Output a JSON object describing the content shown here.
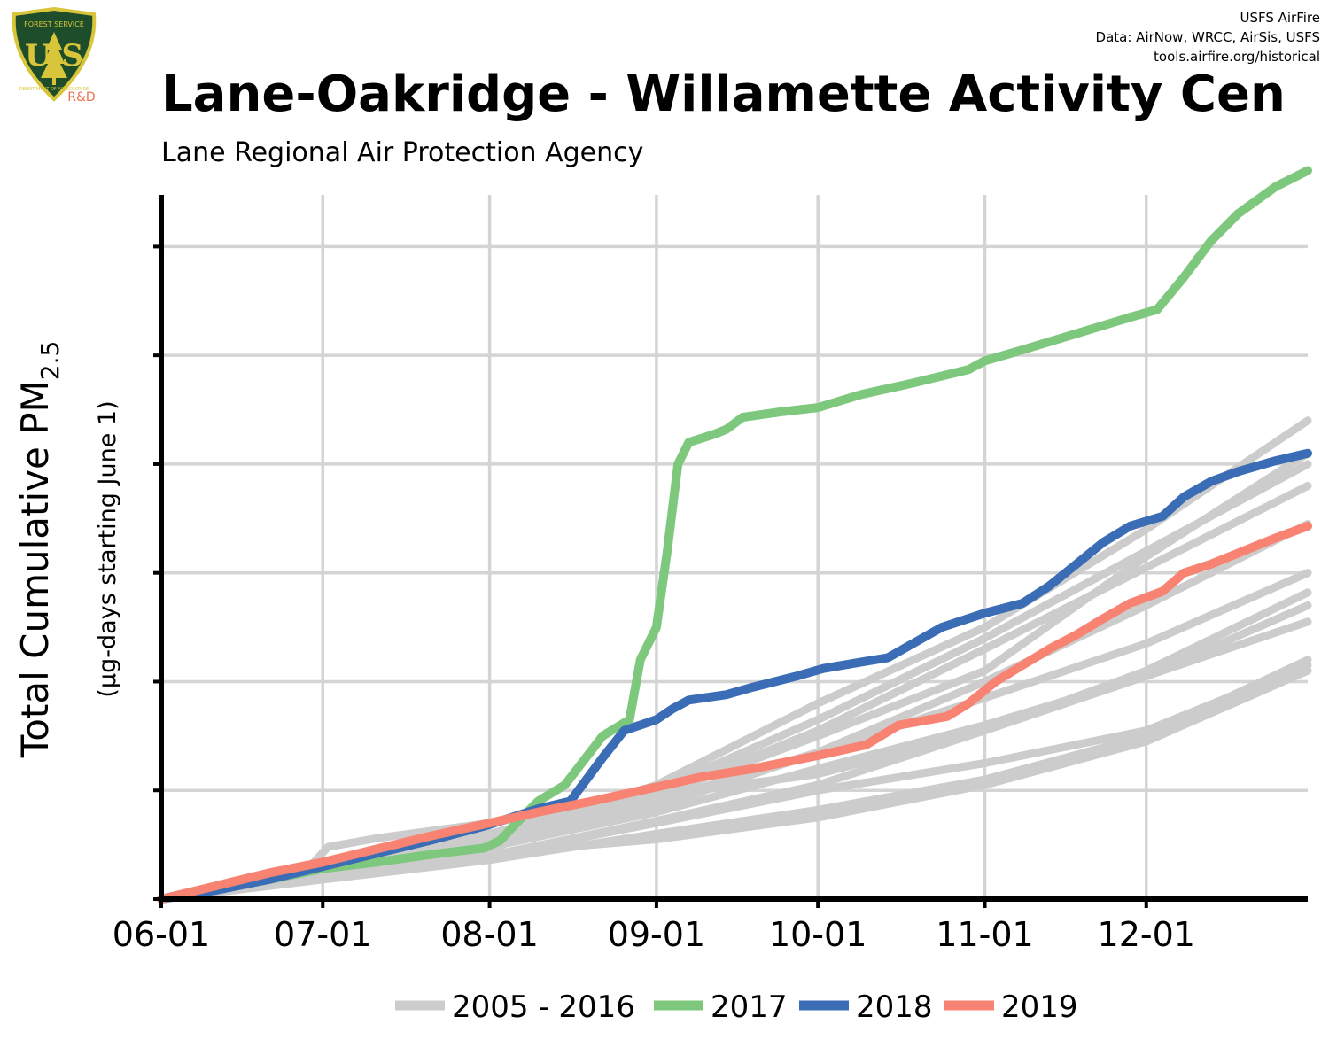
{
  "header": {
    "title": "Lane-Oakridge - Willamette Activity Cen",
    "subtitle": "Lane Regional Air Protection Agency",
    "credits": [
      "USFS AirFire",
      "Data: AirNow, WRCC, AirSis, USFS",
      "tools.airfire.org/historical"
    ]
  },
  "logo": {
    "top_text": "FOREST SERVICE",
    "letters": "U S",
    "bottom_text": "DEPARTMENT OF AGRICULTURE",
    "badge": "R&D",
    "colors": {
      "shield": "#1e4d2b",
      "border": "#d8c53a",
      "badge_text": "#e8734a"
    }
  },
  "chart_data": {
    "type": "line",
    "ylabel_main": "Total Cumulative PM",
    "ylabel_sub_script": "2.5",
    "ylabel_units": "(µg-days starting June 1)",
    "x_ticks": [
      "06-01",
      "07-01",
      "08-01",
      "09-01",
      "10-01",
      "11-01",
      "12-01"
    ],
    "x_tick_days": [
      0,
      30,
      61,
      92,
      122,
      153,
      183
    ],
    "xlim_days": [
      0,
      213
    ],
    "y_ticks": [
      0,
      1,
      2,
      3,
      4,
      5,
      6
    ],
    "ylim": [
      0,
      6.72
    ],
    "y_tick_labels_shown": false,
    "grid": true,
    "legend_position": "bottom",
    "colors": {
      "history": "#cccccc",
      "2017": "#7ec87e",
      "2018": "#3a6db5",
      "2019": "#f88372"
    },
    "history_legend": "2005 - 2016",
    "series": [
      {
        "name": "2017",
        "color": "#7ec87e",
        "points": [
          [
            0,
            0
          ],
          [
            20,
            0.18
          ],
          [
            30,
            0.28
          ],
          [
            40,
            0.34
          ],
          [
            50,
            0.41
          ],
          [
            60,
            0.47
          ],
          [
            63,
            0.54
          ],
          [
            66,
            0.7
          ],
          [
            70,
            0.9
          ],
          [
            75,
            1.05
          ],
          [
            82,
            1.5
          ],
          [
            87,
            1.65
          ],
          [
            89,
            2.2
          ],
          [
            92,
            2.5
          ],
          [
            94,
            3.2
          ],
          [
            96,
            4.0
          ],
          [
            98,
            4.2
          ],
          [
            103,
            4.28
          ],
          [
            105,
            4.32
          ],
          [
            108,
            4.43
          ],
          [
            115,
            4.48
          ],
          [
            122,
            4.52
          ],
          [
            130,
            4.64
          ],
          [
            140,
            4.75
          ],
          [
            150,
            4.87
          ],
          [
            153,
            4.95
          ],
          [
            160,
            5.05
          ],
          [
            170,
            5.2
          ],
          [
            180,
            5.35
          ],
          [
            185,
            5.42
          ],
          [
            190,
            5.72
          ],
          [
            195,
            6.05
          ],
          [
            200,
            6.3
          ],
          [
            207,
            6.55
          ],
          [
            213,
            6.7
          ]
        ]
      },
      {
        "name": "2018",
        "color": "#3a6db5",
        "points": [
          [
            0,
            0
          ],
          [
            10,
            0.08
          ],
          [
            20,
            0.18
          ],
          [
            30,
            0.3
          ],
          [
            40,
            0.42
          ],
          [
            50,
            0.54
          ],
          [
            60,
            0.67
          ],
          [
            70,
            0.83
          ],
          [
            76,
            0.9
          ],
          [
            79,
            1.1
          ],
          [
            82,
            1.3
          ],
          [
            86,
            1.55
          ],
          [
            92,
            1.65
          ],
          [
            95,
            1.75
          ],
          [
            98,
            1.83
          ],
          [
            105,
            1.88
          ],
          [
            110,
            1.95
          ],
          [
            118,
            2.05
          ],
          [
            123,
            2.12
          ],
          [
            130,
            2.18
          ],
          [
            135,
            2.22
          ],
          [
            145,
            2.5
          ],
          [
            153,
            2.63
          ],
          [
            160,
            2.72
          ],
          [
            165,
            2.88
          ],
          [
            170,
            3.08
          ],
          [
            175,
            3.28
          ],
          [
            180,
            3.43
          ],
          [
            186,
            3.52
          ],
          [
            190,
            3.7
          ],
          [
            195,
            3.84
          ],
          [
            200,
            3.93
          ],
          [
            207,
            4.03
          ],
          [
            213,
            4.1
          ]
        ]
      },
      {
        "name": "2019",
        "color": "#f88372",
        "points": [
          [
            0,
            0
          ],
          [
            10,
            0.12
          ],
          [
            20,
            0.24
          ],
          [
            30,
            0.34
          ],
          [
            40,
            0.46
          ],
          [
            50,
            0.58
          ],
          [
            61,
            0.7
          ],
          [
            70,
            0.8
          ],
          [
            80,
            0.9
          ],
          [
            92,
            1.03
          ],
          [
            100,
            1.12
          ],
          [
            110,
            1.2
          ],
          [
            122,
            1.32
          ],
          [
            131,
            1.42
          ],
          [
            137,
            1.6
          ],
          [
            146,
            1.68
          ],
          [
            150,
            1.8
          ],
          [
            155,
            2.0
          ],
          [
            160,
            2.15
          ],
          [
            165,
            2.3
          ],
          [
            170,
            2.43
          ],
          [
            175,
            2.58
          ],
          [
            180,
            2.72
          ],
          [
            186,
            2.83
          ],
          [
            190,
            3.0
          ],
          [
            195,
            3.08
          ],
          [
            200,
            3.18
          ],
          [
            207,
            3.32
          ],
          [
            213,
            3.43
          ]
        ]
      },
      {
        "name": "",
        "color": "#cccccc",
        "points": [
          [
            0,
            0
          ],
          [
            20,
            0.2
          ],
          [
            28,
            0.32
          ],
          [
            31,
            0.48
          ],
          [
            40,
            0.56
          ],
          [
            61,
            0.7
          ],
          [
            92,
            0.95
          ],
          [
            122,
            1.15
          ],
          [
            153,
            1.55
          ],
          [
            183,
            2.1
          ],
          [
            213,
            2.82
          ]
        ]
      },
      {
        "name": "",
        "color": "#cccccc",
        "points": [
          [
            0,
            0
          ],
          [
            30,
            0.28
          ],
          [
            61,
            0.6
          ],
          [
            92,
            1.0
          ],
          [
            122,
            1.65
          ],
          [
            153,
            2.4
          ],
          [
            183,
            3.2
          ],
          [
            213,
            4.0
          ]
        ]
      },
      {
        "name": "",
        "color": "#cccccc",
        "points": [
          [
            0,
            0
          ],
          [
            30,
            0.22
          ],
          [
            61,
            0.42
          ],
          [
            92,
            0.55
          ],
          [
            122,
            0.75
          ],
          [
            153,
            1.05
          ],
          [
            183,
            1.45
          ],
          [
            213,
            2.1
          ]
        ]
      },
      {
        "name": "",
        "color": "#cccccc",
        "points": [
          [
            0,
            0
          ],
          [
            30,
            0.25
          ],
          [
            61,
            0.52
          ],
          [
            92,
            0.85
          ],
          [
            122,
            1.35
          ],
          [
            153,
            2.0
          ],
          [
            183,
            2.7
          ],
          [
            213,
            3.45
          ]
        ]
      },
      {
        "name": "",
        "color": "#cccccc",
        "points": [
          [
            0,
            0
          ],
          [
            30,
            0.3
          ],
          [
            61,
            0.58
          ],
          [
            92,
            0.95
          ],
          [
            122,
            1.55
          ],
          [
            153,
            2.3
          ],
          [
            183,
            3.05
          ],
          [
            213,
            3.8
          ]
        ]
      },
      {
        "name": "",
        "color": "#cccccc",
        "points": [
          [
            0,
            0
          ],
          [
            30,
            0.2
          ],
          [
            61,
            0.4
          ],
          [
            92,
            0.72
          ],
          [
            122,
            1.05
          ],
          [
            153,
            1.55
          ],
          [
            183,
            2.05
          ],
          [
            213,
            2.7
          ]
        ]
      },
      {
        "name": "",
        "color": "#cccccc",
        "points": [
          [
            0,
            0
          ],
          [
            30,
            0.24
          ],
          [
            61,
            0.55
          ],
          [
            92,
            1.05
          ],
          [
            122,
            1.8
          ],
          [
            153,
            2.5
          ],
          [
            183,
            3.4
          ],
          [
            213,
            4.4
          ]
        ]
      },
      {
        "name": "",
        "color": "#cccccc",
        "points": [
          [
            0,
            0
          ],
          [
            30,
            0.18
          ],
          [
            61,
            0.36
          ],
          [
            92,
            0.6
          ],
          [
            122,
            0.82
          ],
          [
            153,
            1.1
          ],
          [
            183,
            1.5
          ],
          [
            213,
            2.2
          ]
        ]
      },
      {
        "name": "",
        "color": "#cccccc",
        "points": [
          [
            0,
            0
          ],
          [
            30,
            0.26
          ],
          [
            61,
            0.5
          ],
          [
            92,
            0.9
          ],
          [
            122,
            1.35
          ],
          [
            153,
            1.85
          ],
          [
            183,
            2.35
          ],
          [
            213,
            3.0
          ]
        ]
      },
      {
        "name": "",
        "color": "#cccccc",
        "points": [
          [
            0,
            0
          ],
          [
            30,
            0.22
          ],
          [
            61,
            0.48
          ],
          [
            92,
            0.8
          ],
          [
            122,
            1.2
          ],
          [
            153,
            1.6
          ],
          [
            183,
            2.05
          ],
          [
            213,
            2.55
          ]
        ]
      },
      {
        "name": "",
        "color": "#cccccc",
        "points": [
          [
            0,
            0
          ],
          [
            30,
            0.28
          ],
          [
            61,
            0.6
          ],
          [
            92,
            0.95
          ],
          [
            122,
            1.5
          ],
          [
            153,
            2.1
          ],
          [
            183,
            3.15
          ],
          [
            213,
            4.1
          ]
        ]
      },
      {
        "name": "",
        "color": "#cccccc",
        "points": [
          [
            0,
            0
          ],
          [
            30,
            0.2
          ],
          [
            61,
            0.4
          ],
          [
            92,
            0.7
          ],
          [
            122,
            1.0
          ],
          [
            153,
            1.25
          ],
          [
            183,
            1.55
          ],
          [
            213,
            2.15
          ]
        ]
      }
    ]
  }
}
